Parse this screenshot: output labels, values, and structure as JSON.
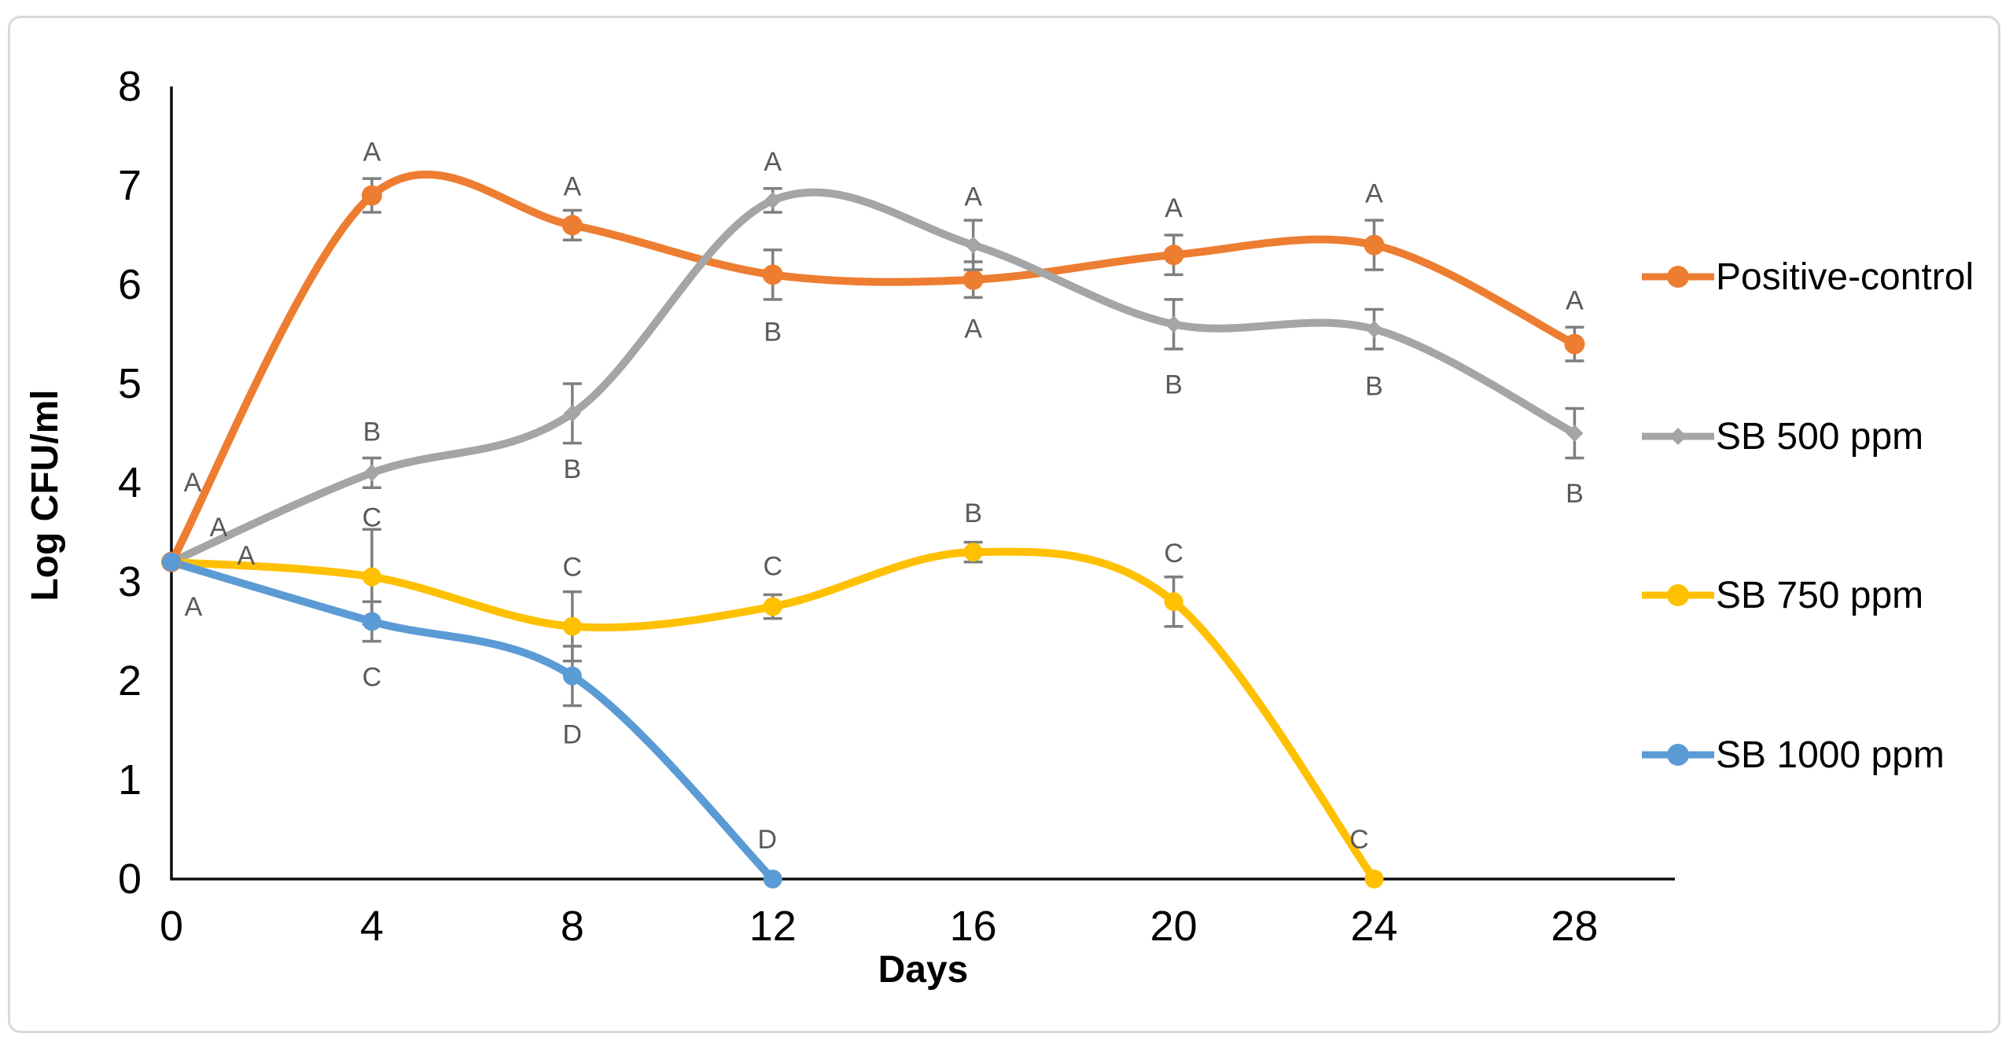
{
  "figure": {
    "background": "#ffffff",
    "border_color": "#d9d9d9"
  },
  "axes": {
    "x_title": "Days",
    "y_title": "Log CFU/ml",
    "x_tick_labels": [
      "0",
      "4",
      "8",
      "12",
      "16",
      "20",
      "24",
      "28"
    ],
    "y_tick_labels": [
      "0",
      "1",
      "2",
      "3",
      "4",
      "5",
      "6",
      "7",
      "8"
    ]
  },
  "legend": {
    "items": [
      {
        "label": "Positive-control",
        "color": "#ED7D31",
        "marker": "circle"
      },
      {
        "label": "SB 500 ppm",
        "color": "#A5A5A5",
        "marker": "diamond"
      },
      {
        "label": "SB 750 ppm",
        "color": "#FFC000",
        "marker": "circle"
      },
      {
        "label": "SB 1000 ppm",
        "color": "#5B9BD5",
        "marker": "circle"
      }
    ]
  },
  "chart_data": {
    "type": "line",
    "title": "",
    "xlabel": "Days",
    "ylabel": "Log CFU/ml",
    "xlim": [
      0,
      30
    ],
    "ylim": [
      0,
      8
    ],
    "x_ticks": [
      0,
      4,
      8,
      12,
      16,
      20,
      24,
      28
    ],
    "y_ticks": [
      0,
      1,
      2,
      3,
      4,
      5,
      6,
      7,
      8
    ],
    "grid": false,
    "line_style": "smooth",
    "legend_position": "right",
    "annotation_color": "#595959",
    "error_bar_color": "#7F7F7F",
    "series": [
      {
        "name": "Positive-control",
        "color": "#ED7D31",
        "marker": "circle",
        "x": [
          0,
          4,
          8,
          12,
          16,
          20,
          24,
          28
        ],
        "values": [
          3.2,
          6.9,
          6.6,
          6.1,
          6.05,
          6.3,
          6.4,
          5.4
        ],
        "errors": [
          0,
          0.17,
          0.15,
          0.25,
          0.18,
          0.2,
          0.25,
          0.17
        ],
        "point_labels": [
          "A",
          "A",
          "A",
          "B",
          "A",
          "A",
          "A",
          "A"
        ],
        "label_offsets": [
          [
            27,
            -102
          ],
          [
            0,
            -56
          ],
          [
            0,
            -50
          ],
          [
            0,
            72
          ],
          [
            0,
            62
          ],
          [
            0,
            -60
          ],
          [
            0,
            -66
          ],
          [
            0,
            -56
          ]
        ]
      },
      {
        "name": "SB 500 ppm",
        "color": "#A5A5A5",
        "marker": "diamond",
        "x": [
          0,
          4,
          8,
          12,
          16,
          20,
          24,
          28
        ],
        "values": [
          3.2,
          4.1,
          4.7,
          6.85,
          6.4,
          5.6,
          5.55,
          4.5
        ],
        "errors": [
          0,
          0.15,
          0.3,
          0.12,
          0.25,
          0.25,
          0.2,
          0.25
        ],
        "point_labels": [
          "A",
          "B",
          "B",
          "A",
          "A",
          "B",
          "B",
          "B"
        ],
        "label_offsets": [
          [
            60,
            -45
          ],
          [
            0,
            -53
          ],
          [
            0,
            70
          ],
          [
            0,
            -50
          ],
          [
            0,
            -62
          ],
          [
            0,
            76
          ],
          [
            0,
            72
          ],
          [
            0,
            76
          ]
        ]
      },
      {
        "name": "SB 750 ppm",
        "color": "#FFC000",
        "marker": "circle",
        "x": [
          0,
          4,
          8,
          12,
          16,
          20,
          24
        ],
        "values": [
          3.2,
          3.05,
          2.55,
          2.75,
          3.3,
          2.8,
          0
        ],
        "errors": [
          0,
          0.48,
          0.35,
          0.12,
          0.1,
          0.25,
          0
        ],
        "point_labels": [
          "A",
          "C",
          "C",
          "C",
          "B",
          "C",
          "C"
        ],
        "label_offsets": [
          [
            95,
            -9
          ],
          [
            0,
            -76
          ],
          [
            0,
            -76
          ],
          [
            0,
            -52
          ],
          [
            0,
            -50
          ],
          [
            0,
            -62
          ],
          [
            -19,
            -51
          ]
        ]
      },
      {
        "name": "SB 1000 ppm",
        "color": "#5B9BD5",
        "marker": "circle",
        "x": [
          0,
          4,
          8,
          12
        ],
        "values": [
          3.2,
          2.6,
          2.05,
          0
        ],
        "errors": [
          0,
          0.2,
          0.3,
          0
        ],
        "point_labels": [
          "A",
          "C",
          "D",
          "D"
        ],
        "label_offsets": [
          [
            28,
            56
          ],
          [
            0,
            70
          ],
          [
            0,
            74
          ],
          [
            -7,
            -51
          ]
        ]
      }
    ]
  }
}
